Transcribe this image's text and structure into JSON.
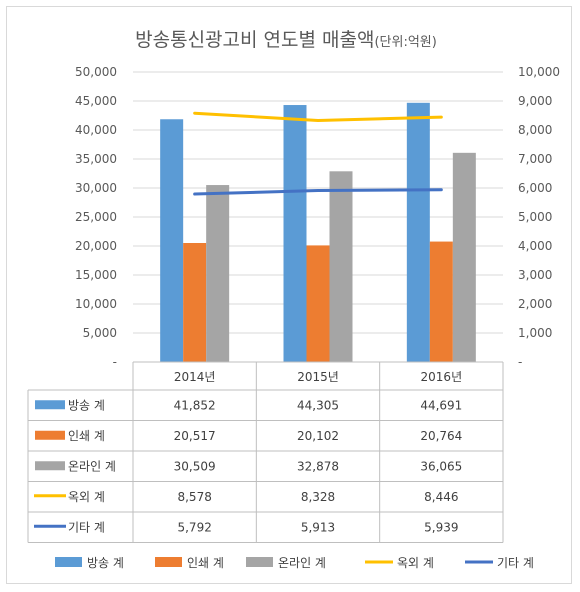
{
  "chart_data": {
    "type": "bar",
    "title": "방송통신광고비 연도별 매출액",
    "title_unit": "(단위:억원)",
    "categories": [
      "2014년",
      "2015년",
      "2016년"
    ],
    "left_axis": {
      "ylim": [
        0,
        50000
      ],
      "ticks": [
        "-",
        "5,000",
        "10,000",
        "15,000",
        "20,000",
        "25,000",
        "30,000",
        "35,000",
        "40,000",
        "45,000",
        "50,000"
      ]
    },
    "right_axis": {
      "ylim": [
        0,
        10000
      ],
      "ticks": [
        "-",
        "1,000",
        "2,000",
        "3,000",
        "4,000",
        "5,000",
        "6,000",
        "7,000",
        "8,000",
        "9,000",
        "10,000"
      ]
    },
    "series": [
      {
        "name": "방송 계",
        "type": "bar",
        "axis": "left",
        "color": "#5B9BD5",
        "values": [
          41852,
          44305,
          44691
        ],
        "labels": [
          "41,852",
          "44,305",
          "44,691"
        ]
      },
      {
        "name": "인쇄 계",
        "type": "bar",
        "axis": "left",
        "color": "#ED7D31",
        "values": [
          20517,
          20102,
          20764
        ],
        "labels": [
          "20,517",
          "20,102",
          "20,764"
        ]
      },
      {
        "name": "온라인 계",
        "type": "bar",
        "axis": "left",
        "color": "#A5A5A5",
        "values": [
          30509,
          32878,
          36065
        ],
        "labels": [
          "30,509",
          "32,878",
          "36,065"
        ]
      },
      {
        "name": "옥외 계",
        "type": "line",
        "axis": "right",
        "color": "#FFC000",
        "values": [
          8578,
          8328,
          8446
        ],
        "labels": [
          "8,578",
          "8,328",
          "8,446"
        ]
      },
      {
        "name": "기타 계",
        "type": "line",
        "axis": "right",
        "color": "#4472C4",
        "values": [
          5792,
          5913,
          5939
        ],
        "labels": [
          "5,792",
          "5,913",
          "5,939"
        ]
      }
    ],
    "legend_position": "bottom",
    "data_table": true
  }
}
